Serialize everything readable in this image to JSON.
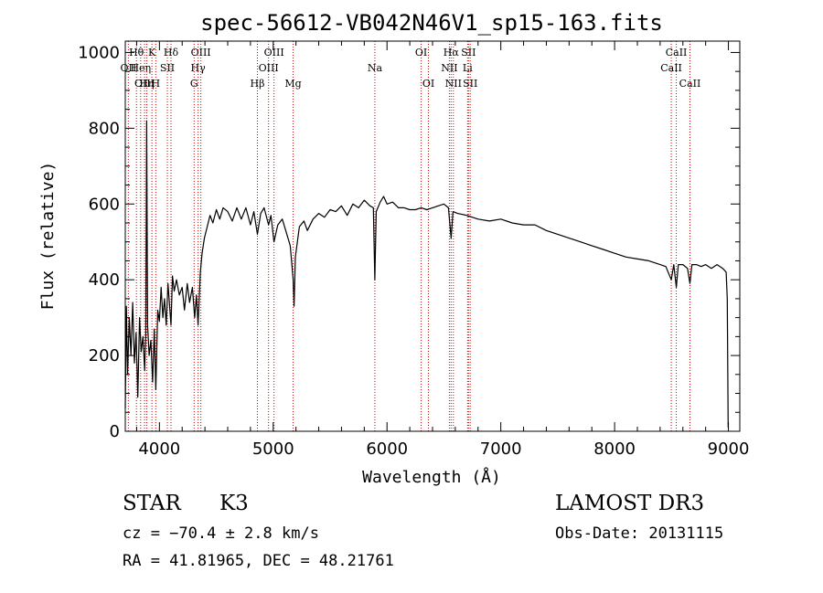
{
  "chart_data": {
    "type": "line",
    "title": "spec-56612-VB042N46V1_sp15-163.fits",
    "xlabel": "Wavelength (Å)",
    "ylabel": "Flux (relative)",
    "xlim": [
      3700,
      9100
    ],
    "ylim": [
      0,
      1030
    ],
    "x_ticks": [
      4000,
      5000,
      6000,
      7000,
      8000,
      9000
    ],
    "x_tick_labels": [
      "4000",
      "5000",
      "6000",
      "7000",
      "8000",
      "9000"
    ],
    "y_ticks": [
      0,
      200,
      400,
      600,
      800,
      1000
    ],
    "y_tick_labels": [
      "0",
      "200",
      "400",
      "600",
      "800",
      "1000"
    ],
    "grid": false,
    "line_color": "#000000",
    "marker_color": "#cc0000",
    "series": [
      {
        "name": "flux",
        "points": [
          [
            3700,
            60
          ],
          [
            3710,
            330
          ],
          [
            3720,
            150
          ],
          [
            3735,
            300
          ],
          [
            3750,
            200
          ],
          [
            3765,
            340
          ],
          [
            3780,
            180
          ],
          [
            3795,
            260
          ],
          [
            3810,
            90
          ],
          [
            3825,
            300
          ],
          [
            3840,
            210
          ],
          [
            3855,
            250
          ],
          [
            3870,
            160
          ],
          [
            3880,
            260
          ],
          [
            3888,
            820
          ],
          [
            3896,
            280
          ],
          [
            3910,
            200
          ],
          [
            3925,
            240
          ],
          [
            3940,
            130
          ],
          [
            3955,
            270
          ],
          [
            3968,
            110
          ],
          [
            3985,
            320
          ],
          [
            4000,
            290
          ],
          [
            4015,
            380
          ],
          [
            4030,
            300
          ],
          [
            4045,
            350
          ],
          [
            4060,
            280
          ],
          [
            4075,
            390
          ],
          [
            4090,
            330
          ],
          [
            4102,
            280
          ],
          [
            4115,
            410
          ],
          [
            4130,
            370
          ],
          [
            4150,
            400
          ],
          [
            4175,
            360
          ],
          [
            4200,
            380
          ],
          [
            4220,
            320
          ],
          [
            4245,
            390
          ],
          [
            4265,
            340
          ],
          [
            4290,
            380
          ],
          [
            4310,
            300
          ],
          [
            4325,
            360
          ],
          [
            4340,
            280
          ],
          [
            4360,
            420
          ],
          [
            4375,
            470
          ],
          [
            4395,
            510
          ],
          [
            4420,
            540
          ],
          [
            4445,
            570
          ],
          [
            4470,
            550
          ],
          [
            4500,
            585
          ],
          [
            4530,
            560
          ],
          [
            4560,
            590
          ],
          [
            4600,
            580
          ],
          [
            4640,
            555
          ],
          [
            4680,
            590
          ],
          [
            4720,
            560
          ],
          [
            4760,
            590
          ],
          [
            4800,
            545
          ],
          [
            4830,
            580
          ],
          [
            4861,
            520
          ],
          [
            4890,
            575
          ],
          [
            4920,
            590
          ],
          [
            4959,
            545
          ],
          [
            4980,
            570
          ],
          [
            5007,
            500
          ],
          [
            5040,
            545
          ],
          [
            5080,
            560
          ],
          [
            5120,
            520
          ],
          [
            5150,
            490
          ],
          [
            5175,
            400
          ],
          [
            5183,
            330
          ],
          [
            5195,
            460
          ],
          [
            5230,
            540
          ],
          [
            5270,
            555
          ],
          [
            5300,
            530
          ],
          [
            5350,
            560
          ],
          [
            5400,
            575
          ],
          [
            5450,
            565
          ],
          [
            5500,
            585
          ],
          [
            5550,
            580
          ],
          [
            5600,
            595
          ],
          [
            5650,
            570
          ],
          [
            5700,
            600
          ],
          [
            5750,
            590
          ],
          [
            5800,
            610
          ],
          [
            5850,
            595
          ],
          [
            5880,
            590
          ],
          [
            5893,
            400
          ],
          [
            5905,
            580
          ],
          [
            5940,
            605
          ],
          [
            5970,
            620
          ],
          [
            6000,
            600
          ],
          [
            6050,
            605
          ],
          [
            6100,
            590
          ],
          [
            6150,
            590
          ],
          [
            6200,
            585
          ],
          [
            6250,
            585
          ],
          [
            6300,
            590
          ],
          [
            6350,
            585
          ],
          [
            6400,
            590
          ],
          [
            6450,
            595
          ],
          [
            6500,
            600
          ],
          [
            6540,
            590
          ],
          [
            6563,
            510
          ],
          [
            6580,
            580
          ],
          [
            6620,
            575
          ],
          [
            6700,
            570
          ],
          [
            6800,
            560
          ],
          [
            6900,
            555
          ],
          [
            7000,
            560
          ],
          [
            7100,
            550
          ],
          [
            7200,
            545
          ],
          [
            7300,
            545
          ],
          [
            7400,
            530
          ],
          [
            7500,
            520
          ],
          [
            7600,
            510
          ],
          [
            7700,
            500
          ],
          [
            7800,
            490
          ],
          [
            7900,
            480
          ],
          [
            8000,
            470
          ],
          [
            8100,
            460
          ],
          [
            8200,
            455
          ],
          [
            8300,
            450
          ],
          [
            8400,
            440
          ],
          [
            8450,
            435
          ],
          [
            8498,
            400
          ],
          [
            8520,
            440
          ],
          [
            8542,
            380
          ],
          [
            8560,
            440
          ],
          [
            8600,
            440
          ],
          [
            8640,
            430
          ],
          [
            8662,
            390
          ],
          [
            8680,
            440
          ],
          [
            8720,
            440
          ],
          [
            8760,
            435
          ],
          [
            8800,
            440
          ],
          [
            8850,
            430
          ],
          [
            8900,
            440
          ],
          [
            8950,
            430
          ],
          [
            8980,
            420
          ],
          [
            8990,
            350
          ],
          [
            8998,
            10
          ]
        ]
      }
    ],
    "lines": [
      {
        "name": "Hθ",
        "wl": 3798,
        "row": 1
      },
      {
        "name": "OII",
        "wl": 3727,
        "row": 2
      },
      {
        "name": "Heη",
        "wl": 3835,
        "row": 2
      },
      {
        "name": "OIII",
        "wl": 3869,
        "row": 3
      },
      {
        "name": "Hη",
        "wl": 3889,
        "row": 3
      },
      {
        "name": "K",
        "wl": 3934,
        "row": 1
      },
      {
        "name": "H",
        "wl": 3968,
        "row": 3
      },
      {
        "name": "SII",
        "wl": 4070,
        "row": 2
      },
      {
        "name": "Hδ",
        "wl": 4102,
        "row": 1
      },
      {
        "name": "OIII",
        "wl": 4364,
        "row": 1
      },
      {
        "name": "Hγ",
        "wl": 4340,
        "row": 2
      },
      {
        "name": "G",
        "wl": 4305,
        "row": 3
      },
      {
        "name": "Hβ",
        "wl": 4861,
        "row": 3
      },
      {
        "name": "OIII",
        "wl": 4959,
        "row": 2
      },
      {
        "name": "OIII",
        "wl": 5007,
        "row": 1
      },
      {
        "name": "Mg",
        "wl": 5175,
        "row": 3
      },
      {
        "name": "Na",
        "wl": 5893,
        "row": 2
      },
      {
        "name": "OI",
        "wl": 6300,
        "row": 1
      },
      {
        "name": "OI",
        "wl": 6364,
        "row": 3
      },
      {
        "name": "NII",
        "wl": 6548,
        "row": 2
      },
      {
        "name": "Hα",
        "wl": 6563,
        "row": 1
      },
      {
        "name": "NII",
        "wl": 6583,
        "row": 3
      },
      {
        "name": "SII",
        "wl": 6716,
        "row": 1
      },
      {
        "name": "Li",
        "wl": 6708,
        "row": 2
      },
      {
        "name": "SII",
        "wl": 6731,
        "row": 3
      },
      {
        "name": "CaII",
        "wl": 8498,
        "row": 2
      },
      {
        "name": "CaII",
        "wl": 8542,
        "row": 1
      },
      {
        "name": "CaII",
        "wl": 8662,
        "row": 3
      }
    ]
  },
  "info": {
    "object_class": "STAR",
    "subclass": "K3",
    "survey": "LAMOST DR3",
    "cz": "cz = −70.4 ± 2.8 km/s",
    "obs_date": "Obs-Date: 20131115",
    "coords": "RA =  41.81965, DEC =  48.21761"
  }
}
